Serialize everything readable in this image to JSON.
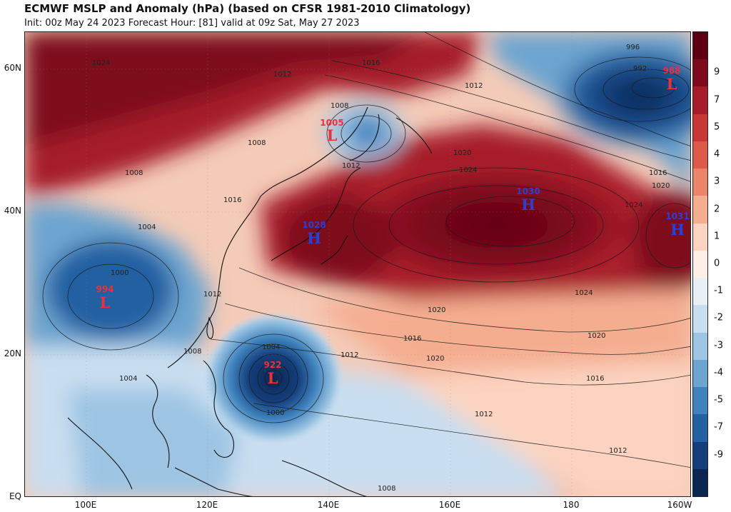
{
  "header": {
    "title": "ECMWF MSLP and Anomaly (hPa) (based on CFSR 1981-2010 Climatology)",
    "subtitle": "Init: 00z May 24 2023   Forecast Hour: [81]   valid at 09z Sat, May 27 2023"
  },
  "axes": {
    "lat_labels": [
      "60N",
      "40N",
      "20N",
      "EQ"
    ],
    "lon_labels": [
      "100E",
      "120E",
      "140E",
      "160E",
      "180",
      "160W"
    ]
  },
  "colorbar": {
    "labels": [
      "9",
      "7",
      "5",
      "4",
      "3",
      "2",
      "1",
      "0",
      "-1",
      "-2",
      "-3",
      "-4",
      "-5",
      "-7",
      "-9"
    ],
    "colors": [
      "#5e0011",
      "#7e0a1e",
      "#a61c2a",
      "#c83735",
      "#dd5a4a",
      "#ec8468",
      "#f5ad90",
      "#fbd3c0",
      "#fcefe7",
      "#e8f0f6",
      "#c9def0",
      "#9dc5e3",
      "#6da5d0",
      "#3f82bd",
      "#2461a2",
      "#143f7c",
      "#0a2650"
    ]
  },
  "systems": [
    {
      "id": "low-988",
      "value": "988",
      "letter": "L",
      "kind": "low"
    },
    {
      "id": "low-1005",
      "value": "1005",
      "letter": "L",
      "kind": "low"
    },
    {
      "id": "high-1030",
      "value": "1030",
      "letter": "H",
      "kind": "high"
    },
    {
      "id": "high-1028",
      "value": "1028",
      "letter": "H",
      "kind": "high"
    },
    {
      "id": "high-1031",
      "value": "1031",
      "letter": "H",
      "kind": "high"
    },
    {
      "id": "low-994",
      "value": "994",
      "letter": "L",
      "kind": "low"
    },
    {
      "id": "low-922",
      "value": "922",
      "letter": "L",
      "kind": "low"
    }
  ],
  "isobar_labels": [
    "996",
    "992",
    "1024",
    "1016",
    "1012",
    "1008",
    "1012",
    "1020",
    "1016",
    "1020",
    "1024",
    "1008",
    "1012",
    "1008",
    "1004",
    "1000",
    "1020",
    "1024",
    "1020",
    "1016",
    "1024",
    "1020",
    "1016",
    "1012",
    "1012",
    "1012",
    "1008",
    "1004",
    "1000",
    "1008",
    "1004",
    "1012",
    "1016"
  ],
  "colors": {
    "low_text": "#e8323f",
    "high_text": "#2a3fd6"
  }
}
